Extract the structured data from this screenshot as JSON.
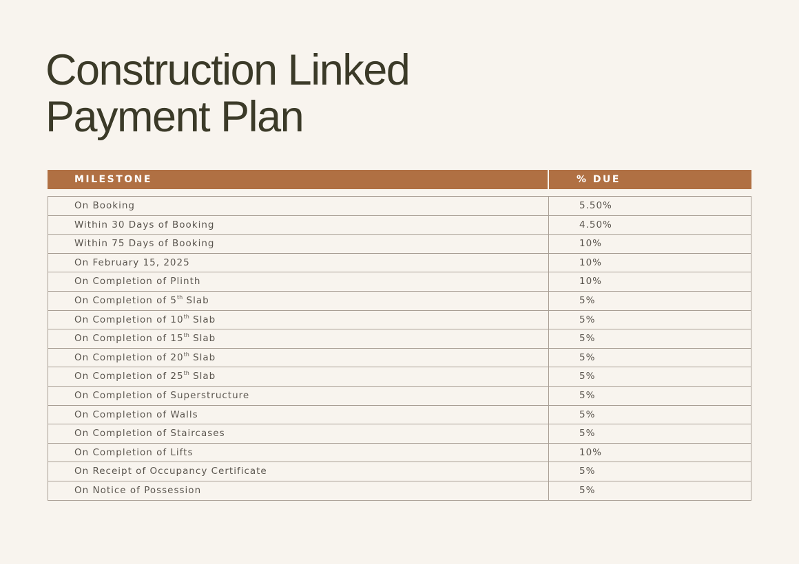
{
  "title": {
    "line1": "Construction Linked",
    "line2": "Payment Plan"
  },
  "table": {
    "header": [
      "MILESTONE",
      "% DUE"
    ],
    "rows": [
      [
        "On Booking",
        "5.50%"
      ],
      [
        "Within 30 Days of Booking",
        "4.50%"
      ],
      [
        "Within 75 Days of Booking",
        "10%"
      ],
      [
        "On February 15, 2025",
        "10%"
      ],
      [
        "On Completion of Plinth",
        "10%"
      ],
      [
        {
          "text": "On Completion of 5",
          "sup": "th",
          "rest": " Slab"
        },
        "5%"
      ],
      [
        {
          "text": "On Completion of 10",
          "sup": "th",
          "rest": " Slab"
        },
        "5%"
      ],
      [
        {
          "text": "On Completion of 15",
          "sup": "th",
          "rest": " Slab"
        },
        "5%"
      ],
      [
        {
          "text": "On Completion of 20",
          "sup": "th",
          "rest": " Slab"
        },
        "5%"
      ],
      [
        {
          "text": "On Completion of 25",
          "sup": "th",
          "rest": " Slab"
        },
        "5%"
      ],
      [
        "On Completion of Superstructure",
        "5%"
      ],
      [
        "On Completion of Walls",
        "5%"
      ],
      [
        "On Completion of Staircases",
        "5%"
      ],
      [
        "On Completion of Lifts",
        "10%"
      ],
      [
        "On Receipt of Occupancy Certificate",
        "5%"
      ],
      [
        "On Notice of Possession",
        "5%"
      ]
    ]
  }
}
